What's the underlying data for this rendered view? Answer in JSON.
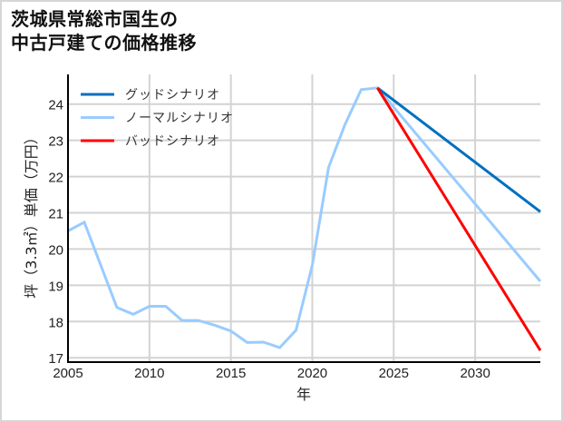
{
  "title_lines": [
    "茨城県常総市国生の",
    "中古戸建ての価格推移"
  ],
  "chart_data": {
    "type": "line",
    "title": "茨城県常総市国生の中古戸建ての価格推移",
    "xlabel": "年",
    "ylabel": "坪（3.3㎡）単価（万円）",
    "xlim": [
      2005,
      2034
    ],
    "ylim": [
      16.88,
      24.82
    ],
    "xticks": [
      2005,
      2010,
      2015,
      2020,
      2025,
      2030
    ],
    "yticks": [
      17,
      18,
      19,
      20,
      21,
      22,
      23,
      24
    ],
    "grid": true,
    "legend_position": "upper left",
    "series": [
      {
        "name": "グッドシナリオ",
        "color": "#0070c0",
        "x": [
          2024,
          2034
        ],
        "y": [
          24.45,
          21.03
        ]
      },
      {
        "name": "ノーマルシナリオ",
        "color": "#99ccff",
        "x": [
          2005,
          2006,
          2008,
          2009,
          2010,
          2011,
          2012,
          2013,
          2014,
          2015,
          2016,
          2017,
          2018,
          2019,
          2020,
          2021,
          2022,
          2023,
          2024,
          2034
        ],
        "y": [
          20.5,
          20.74,
          18.39,
          18.2,
          18.42,
          18.42,
          18.03,
          18.03,
          17.9,
          17.74,
          17.42,
          17.43,
          17.28,
          17.76,
          19.56,
          22.25,
          23.43,
          24.4,
          24.45,
          19.11
        ]
      },
      {
        "name": "バッドシナリオ",
        "color": "#ff0000",
        "x": [
          2024,
          2034
        ],
        "y": [
          24.45,
          17.2
        ]
      }
    ]
  },
  "legend": [
    {
      "label": "グッドシナリオ",
      "color": "#0070c0"
    },
    {
      "label": "ノーマルシナリオ",
      "color": "#99ccff"
    },
    {
      "label": "バッドシナリオ",
      "color": "#ff0000"
    }
  ]
}
